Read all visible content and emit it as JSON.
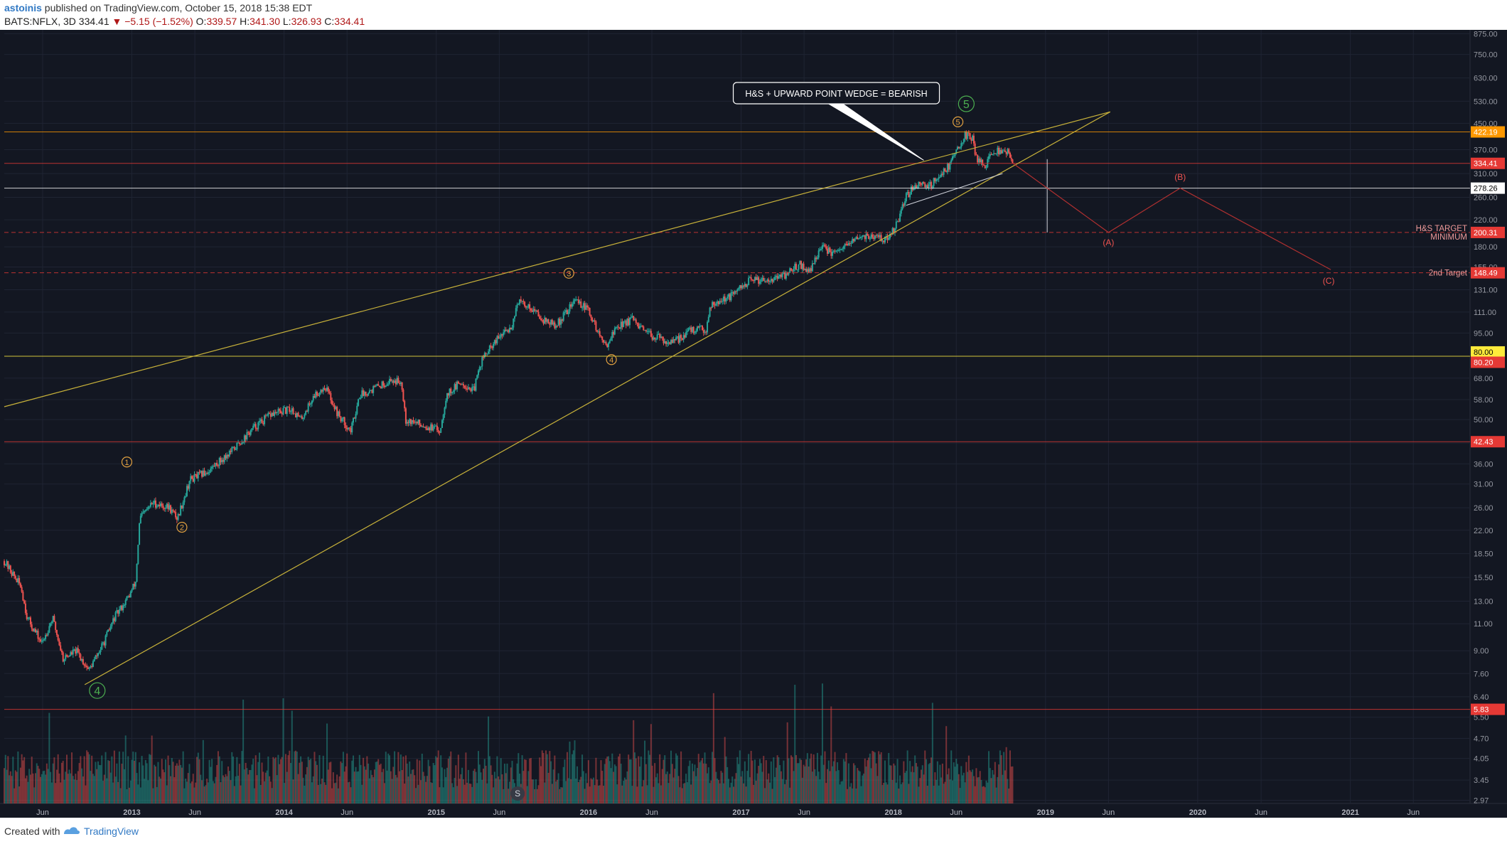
{
  "header": {
    "publisher": "astoinis",
    "published_text": "published on TradingView.com, October 15, 2018 15:38 EDT",
    "symbol": "BATS:NFLX, 3D",
    "last": "334.41",
    "change": "−5.15 (−1.52%)",
    "open_label": "O:",
    "open": "339.57",
    "high_label": "H:",
    "high": "341.30",
    "low_label": "L:",
    "low": "326.93",
    "close_label": "C:",
    "close": "334.41"
  },
  "footer": {
    "created_with": "Created with",
    "brand": "TradingView"
  },
  "colors": {
    "background": "#131722",
    "grid": "#1f2433",
    "up": "#26a69a",
    "down": "#ef5350",
    "wedge": "#c8b23a",
    "resistance": "#c8b23a",
    "target": "#e53935",
    "projection": "#b03030",
    "wave_major": "#4caf50",
    "wave_minor": "#e0a040"
  },
  "chart_data": {
    "type": "candlestick",
    "yscale": "log",
    "ylim": [
      2.9,
      900
    ],
    "xlim": [
      "2012-03-01",
      "2021-10-15"
    ],
    "y_ticks": [
      "875.00",
      "750.00",
      "630.00",
      "530.00",
      "450.00",
      "370.00",
      "310.00",
      "260.00",
      "220.00",
      "180.00",
      "155.00",
      "131.00",
      "111.00",
      "95.00",
      "80.00",
      "68.00",
      "58.00",
      "50.00",
      "42.00",
      "36.00",
      "31.00",
      "26.00",
      "22.00",
      "18.50",
      "15.50",
      "13.00",
      "11.00",
      "9.00",
      "7.60",
      "6.40",
      "5.50",
      "4.70",
      "4.05",
      "3.45",
      "2.97"
    ],
    "x_ticks": [
      {
        "date": "2012-06-01",
        "label": "Jun"
      },
      {
        "date": "2013-01-01",
        "label": "2013"
      },
      {
        "date": "2013-06-01",
        "label": "Jun"
      },
      {
        "date": "2014-01-01",
        "label": "2014"
      },
      {
        "date": "2014-06-01",
        "label": "Jun"
      },
      {
        "date": "2015-01-01",
        "label": "2015"
      },
      {
        "date": "2015-06-01",
        "label": "Jun"
      },
      {
        "date": "2016-01-01",
        "label": "2016"
      },
      {
        "date": "2016-06-01",
        "label": "Jun"
      },
      {
        "date": "2017-01-01",
        "label": "2017"
      },
      {
        "date": "2017-06-01",
        "label": "Jun"
      },
      {
        "date": "2018-01-01",
        "label": "2018"
      },
      {
        "date": "2018-06-01",
        "label": "Jun"
      },
      {
        "date": "2019-01-01",
        "label": "2019"
      },
      {
        "date": "2019-06-01",
        "label": "Jun"
      },
      {
        "date": "2020-01-01",
        "label": "2020"
      },
      {
        "date": "2020-06-01",
        "label": "Jun"
      },
      {
        "date": "2021-01-01",
        "label": "2021"
      },
      {
        "date": "2021-06-01",
        "label": "Jun"
      }
    ],
    "price_path": [
      [
        "2012-03-01",
        17.5
      ],
      [
        "2012-04-10",
        14.5
      ],
      [
        "2012-04-25",
        11.5
      ],
      [
        "2012-05-30",
        9.5
      ],
      [
        "2012-06-25",
        11.5
      ],
      [
        "2012-07-20",
        8.5
      ],
      [
        "2012-08-20",
        9.0
      ],
      [
        "2012-09-20",
        7.8
      ],
      [
        "2012-10-25",
        9.5
      ],
      [
        "2012-11-20",
        11.5
      ],
      [
        "2012-12-25",
        13.5
      ],
      [
        "2013-01-10",
        15.0
      ],
      [
        "2013-01-20",
        24.0
      ],
      [
        "2013-02-20",
        27.0
      ],
      [
        "2013-04-01",
        26.0
      ],
      [
        "2013-04-20",
        24.0
      ],
      [
        "2013-05-20",
        32.0
      ],
      [
        "2013-07-01",
        34.0
      ],
      [
        "2013-09-01",
        40.0
      ],
      [
        "2013-10-20",
        47.0
      ],
      [
        "2013-12-01",
        52.0
      ],
      [
        "2014-01-20",
        54.0
      ],
      [
        "2014-02-10",
        50.0
      ],
      [
        "2014-03-15",
        60.0
      ],
      [
        "2014-04-10",
        64.0
      ],
      [
        "2014-05-10",
        52.0
      ],
      [
        "2014-06-10",
        46.0
      ],
      [
        "2014-07-01",
        60.0
      ],
      [
        "2014-08-15",
        64.0
      ],
      [
        "2014-09-15",
        67.0
      ],
      [
        "2014-10-10",
        66.0
      ],
      [
        "2014-10-20",
        50.0
      ],
      [
        "2014-12-01",
        48.0
      ],
      [
        "2015-01-10",
        46.0
      ],
      [
        "2015-01-25",
        60.0
      ],
      [
        "2015-03-01",
        66.0
      ],
      [
        "2015-04-01",
        62.0
      ],
      [
        "2015-04-20",
        78.0
      ],
      [
        "2015-06-01",
        92.0
      ],
      [
        "2015-07-01",
        100.0
      ],
      [
        "2015-07-15",
        120.0
      ],
      [
        "2015-08-15",
        115.0
      ],
      [
        "2015-09-15",
        105.0
      ],
      [
        "2015-10-15",
        100.0
      ],
      [
        "2015-12-01",
        122.0
      ],
      [
        "2016-01-01",
        112.0
      ],
      [
        "2016-01-25",
        95.0
      ],
      [
        "2016-02-10",
        86.0
      ],
      [
        "2016-03-10",
        100.0
      ],
      [
        "2016-04-15",
        105.0
      ],
      [
        "2016-05-15",
        95.0
      ],
      [
        "2016-06-15",
        92.0
      ],
      [
        "2016-07-20",
        88.0
      ],
      [
        "2016-09-01",
        97.0
      ],
      [
        "2016-10-10",
        98.0
      ],
      [
        "2016-10-20",
        118.0
      ],
      [
        "2016-12-10",
        125.0
      ],
      [
        "2017-01-20",
        140.0
      ],
      [
        "2017-03-01",
        142.0
      ],
      [
        "2017-04-10",
        144.0
      ],
      [
        "2017-05-20",
        158.0
      ],
      [
        "2017-06-15",
        150.0
      ],
      [
        "2017-07-10",
        180.0
      ],
      [
        "2017-08-15",
        170.0
      ],
      [
        "2017-09-20",
        185.0
      ],
      [
        "2017-10-20",
        196.0
      ],
      [
        "2017-12-20",
        190.0
      ],
      [
        "2018-01-15",
        220.0
      ],
      [
        "2018-01-30",
        260.0
      ],
      [
        "2018-03-01",
        290.0
      ],
      [
        "2018-04-01",
        285.0
      ],
      [
        "2018-05-15",
        330.0
      ],
      [
        "2018-06-20",
        410.0
      ],
      [
        "2018-07-10",
        405.0
      ],
      [
        "2018-07-18",
        350.0
      ],
      [
        "2018-08-10",
        330.0
      ],
      [
        "2018-08-25",
        360.0
      ],
      [
        "2018-09-20",
        370.0
      ],
      [
        "2018-10-01",
        365.0
      ],
      [
        "2018-10-15",
        334.41
      ]
    ],
    "levels": [
      {
        "value": 422.19,
        "label": "422.19",
        "color": "#ff9800",
        "line": "solid"
      },
      {
        "value": 334.41,
        "label": "334.41",
        "color": "#e53935",
        "line": "solid"
      },
      {
        "value": 278.26,
        "label": "278.26",
        "color": "#ffffff",
        "line": "solid"
      },
      {
        "value": 200.31,
        "label": "200.31",
        "color": "#e53935",
        "line": "dashed"
      },
      {
        "value": 148.49,
        "label": "148.49",
        "color": "#e53935",
        "line": "dashed"
      },
      {
        "value": 80.0,
        "label": "80.00",
        "color": "#ffeb3b",
        "line": "solid"
      },
      {
        "value": 80.2,
        "label": "80.20",
        "color": "#e53935",
        "line": "none"
      },
      {
        "value": 42.43,
        "label": "42.43",
        "color": "#e53935",
        "line": "solid"
      },
      {
        "value": 5.83,
        "label": "5.83",
        "color": "#e53935",
        "line": "solid"
      }
    ],
    "annotations": {
      "callout": "H&S + UPWARD POINT WEDGE = BEARISH",
      "hs_target": "H&S TARGET",
      "hs_minimum": "MINIMUM",
      "second_target": "2nd Target",
      "wave_labels": [
        {
          "label": "4",
          "date": "2012-10-10",
          "value": 6.7,
          "kind": "major"
        },
        {
          "label": "5",
          "date": "2018-06-25",
          "value": 520,
          "kind": "major"
        },
        {
          "label": "1",
          "date": "2012-12-20",
          "value": 36.5,
          "kind": "minor"
        },
        {
          "label": "2",
          "date": "2013-05-01",
          "value": 22.5,
          "kind": "minor"
        },
        {
          "label": "3",
          "date": "2015-11-15",
          "value": 148,
          "kind": "minor"
        },
        {
          "label": "4",
          "date": "2016-02-25",
          "value": 78,
          "kind": "minor"
        },
        {
          "label": "5",
          "date": "2018-06-05",
          "value": 455,
          "kind": "minor"
        }
      ],
      "abc_labels": [
        {
          "label": "(A)",
          "date": "2019-06-01",
          "value": 186
        },
        {
          "label": "(B)",
          "date": "2019-11-20",
          "value": 302
        },
        {
          "label": "(C)",
          "date": "2020-11-10",
          "value": 140
        }
      ],
      "s_marker": "S"
    }
  }
}
